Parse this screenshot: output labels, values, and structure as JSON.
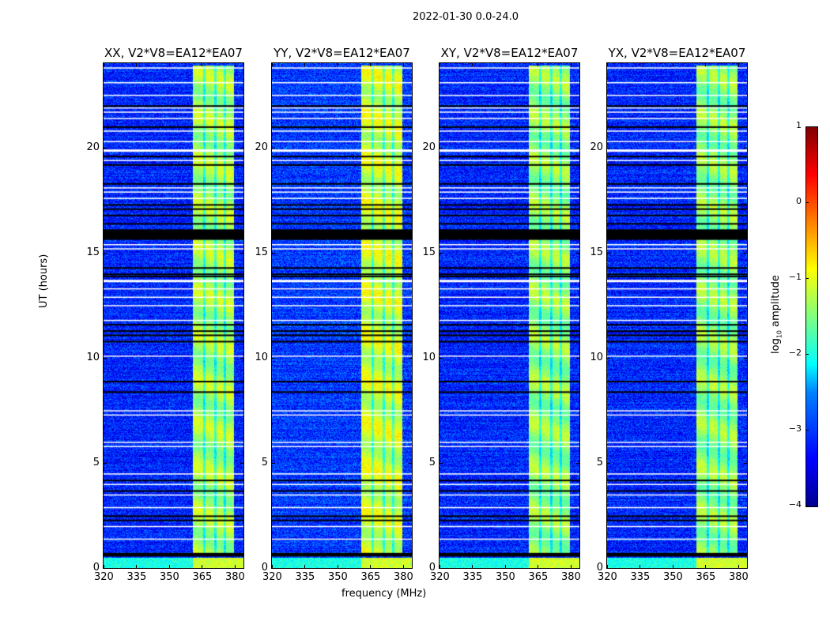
{
  "chart_data": {
    "type": "heatmap",
    "title": "2022-01-30 0.0-24.0",
    "xlabel": "frequency (MHz)",
    "ylabel": "UT (hours)",
    "xlim": [
      320,
      384
    ],
    "ylim": [
      0,
      24
    ],
    "xticks": [
      "320",
      "335",
      "350",
      "365",
      "380"
    ],
    "yticks": [
      "0",
      "5",
      "10",
      "15",
      "20"
    ],
    "colormap": "jet",
    "colorbar": {
      "label_main": "log",
      "label_sub": "10",
      "label_rest": " amplitude",
      "range": [
        -4,
        1
      ],
      "ticks": [
        "1",
        "0",
        "−1",
        "−2",
        "−3",
        "−4"
      ]
    },
    "panels": [
      {
        "title": "XX, V2*V8=EA12*EA07",
        "background_level": -3.2,
        "band_level": -1.3
      },
      {
        "title": "YY, V2*V8=EA12*EA07",
        "background_level": -3.1,
        "band_level": -1.1
      },
      {
        "title": "XY, V2*V8=EA12*EA07",
        "background_level": -3.2,
        "band_level": -1.4
      },
      {
        "title": "YX, V2*V8=EA12*EA07",
        "background_level": -3.2,
        "band_level": -1.4
      }
    ],
    "rfi_band_mhz": [
      360.5,
      379.5
    ],
    "band_gaps_mhz": [
      366,
      371,
      375.5
    ],
    "flagged_hours_white": [
      23.8,
      23.1,
      22.5,
      21.9,
      21.7,
      21.4,
      20.8,
      20.3,
      19.9,
      19.4,
      18.1,
      17.9,
      17.6,
      15.4,
      15.2,
      13.7,
      13.3,
      12.9,
      12.5,
      11.8,
      10.1,
      7.5,
      7.3,
      6.0,
      5.8,
      4.5,
      4.0,
      3.5,
      2.9,
      2.0,
      1.4
    ],
    "flagged_hours_black": [
      22.0,
      21.0,
      19.6,
      19.2,
      18.3,
      17.3,
      17.1,
      16.8,
      16.4,
      14.3,
      14.0,
      13.9,
      11.6,
      11.3,
      11.1,
      10.8,
      8.9,
      8.4,
      4.2,
      3.7,
      2.5,
      2.3
    ],
    "flagged_ranges_black": [
      [
        15.6,
        16.1
      ],
      [
        0.55,
        0.72
      ]
    ]
  }
}
